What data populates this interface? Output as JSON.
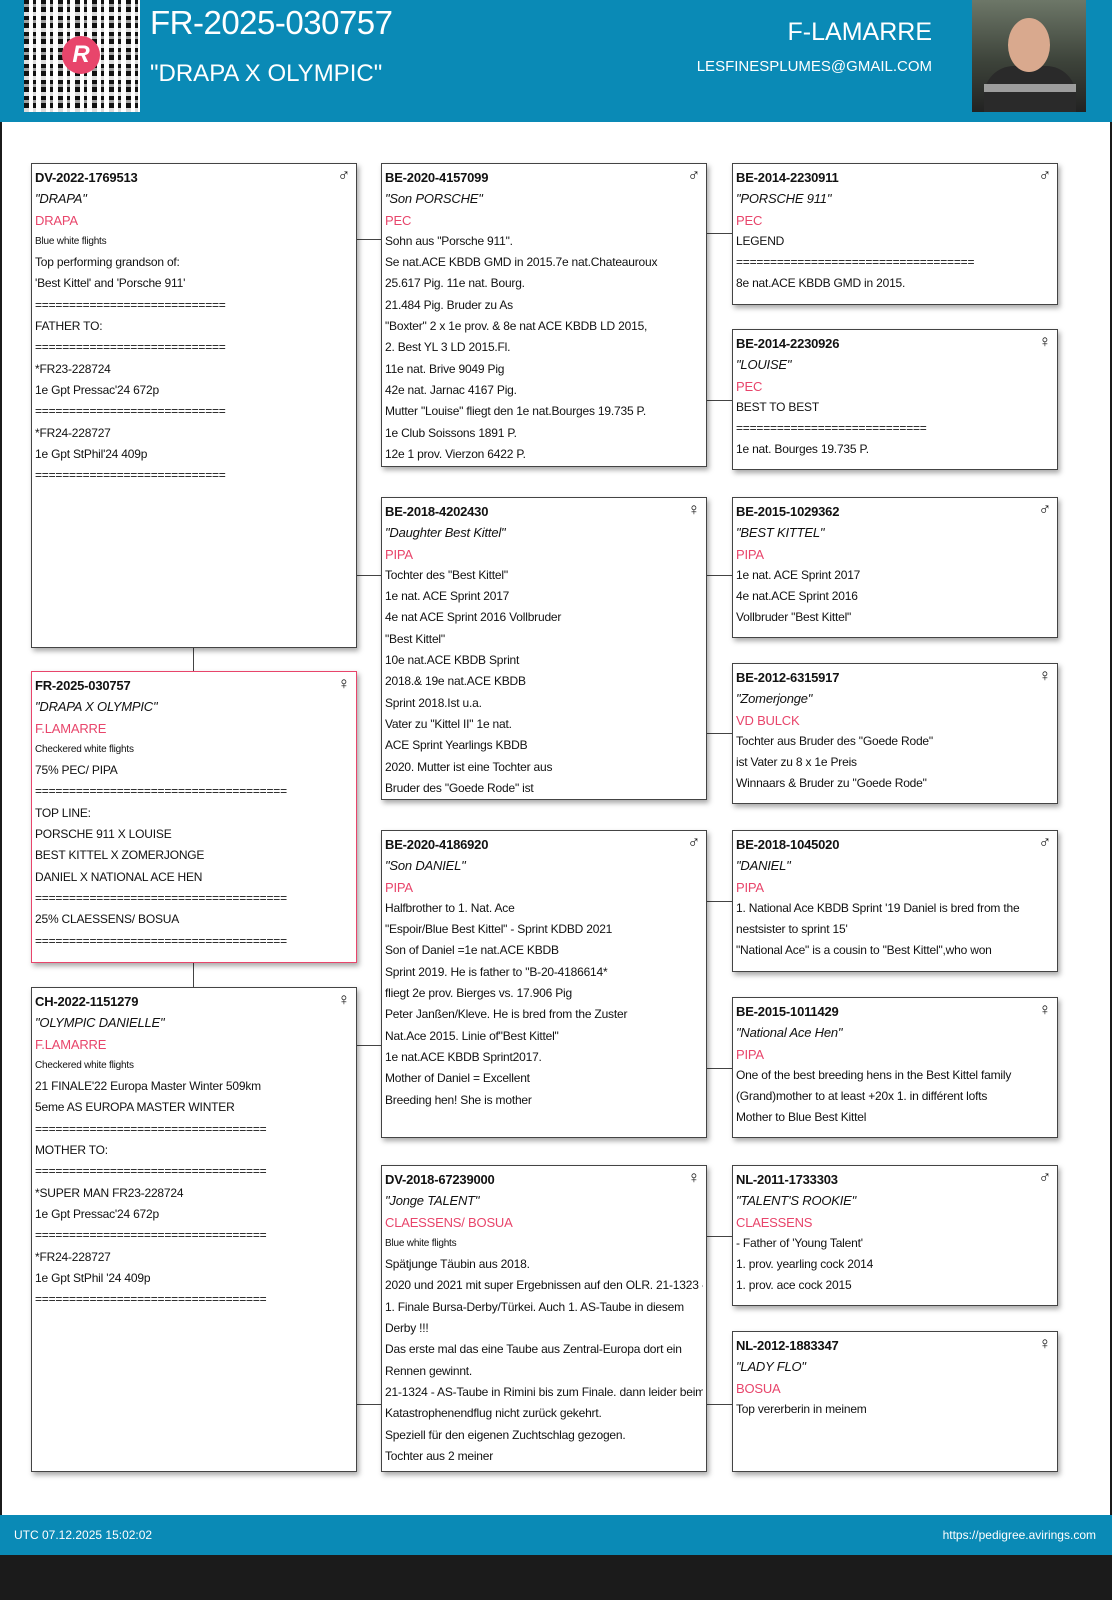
{
  "header": {
    "ring": "FR-2025-030757",
    "name": "\"DRAPA X OLYMPIC\"",
    "owner": "F-LAMARRE",
    "email": "LESFINESPLUMES@GMAIL.COM",
    "logo_letter": "R"
  },
  "footer": {
    "timestamp": "UTC 07.12.2025 15:02:02",
    "url": "https://pedigree.avirings.com"
  },
  "colors": {
    "brand": "#0a8ab6",
    "accent": "#e8456b"
  },
  "pigeons": [
    {
      "ring": "DV-2022-1769513",
      "sex": "male",
      "name": "\"DRAPA\"",
      "owner": "DRAPA",
      "color": "Blue white flights",
      "lines": [
        "Top performing grandson of:",
        "'Best Kittel' and 'Porsche 911'",
        "============================",
        "FATHER TO:",
        "============================",
        "*FR23-228724",
        "1e  Gpt Pressac'24 672p",
        "============================",
        "*FR24-228727",
        "1e  Gpt StPhil'24  409p",
        "============================"
      ]
    },
    {
      "ring": "FR-2025-030757",
      "sex": "female",
      "name": "\"DRAPA X OLYMPIC\"",
      "owner": "F.LAMARRE",
      "color": "Checkered white flights",
      "lines": [
        "75% PEC/ PIPA",
        "=====================================",
        "TOP LINE:",
        "PORSCHE 911 X LOUISE",
        "BEST KITTEL X ZOMERJONGE",
        "DANIEL X NATIONAL ACE HEN",
        "=====================================",
        "25% CLAESSENS/ BOSUA",
        "====================================="
      ]
    },
    {
      "ring": "CH-2022-1151279",
      "sex": "female",
      "name": "\"OLYMPIC DANIELLE\"",
      "owner": "F.LAMARRE",
      "color": "Checkered white flights",
      "lines": [
        "21 FINALE'22 Europa Master Winter 509km",
        "5eme AS EUROPA MASTER WINTER",
        "==================================",
        "MOTHER TO:",
        "==================================",
        "*SUPER MAN    FR23-228724",
        "1e  Gpt Pressac'24  672p",
        "==================================",
        "*FR24-228727",
        "1e  Gpt StPhil '24  409p",
        "=================================="
      ]
    },
    {
      "ring": "BE-2020-4157099",
      "sex": "male",
      "name": "\"Son PORSCHE\"",
      "owner": "PEC",
      "lines": [
        "Sohn aus \"Porsche 911\".",
        "Se nat.ACE KBDB GMD in 2015.7e nat.Chateauroux",
        "25.617 Pig. 11e nat. Bourg.",
        "21.484 Pig. Bruder zu As",
        "\"Boxter\" 2 x 1e prov. & 8e nat ACE KBDB LD 2015,",
        "2. Best YL 3 LD 2015.Fl.",
        "11e nat. Brive 9049 Pig",
        "42e nat. Jarnac 4167 Pig.",
        "Mutter \"Louise\" fliegt den 1e nat.Bourges 19.735 P.",
        "1e Club Soissons 1891 P.",
        "12e 1 prov. Vierzon 6422 P."
      ]
    },
    {
      "ring": "BE-2018-4202430",
      "sex": "female",
      "name": "\"Daughter Best Kittel\"",
      "owner": "PIPA",
      "lines": [
        "Tochter des \"Best Kittel\"",
        "1e nat. ACE Sprint 2017",
        "4e nat ACE Sprint 2016 Vollbruder",
        "\"Best Kittel\"",
        "10e nat.ACE KBDB Sprint",
        "2018.& 19e nat.ACE KBDB",
        "Sprint 2018.Ist u.a.",
        "Vater zu \"Kittel II\" 1e nat.",
        "ACE Sprint Yearlings KBDB",
        "2020. Mutter ist eine Tochter aus",
        "Bruder des \"Goede Rode\" ist"
      ]
    },
    {
      "ring": "BE-2020-4186920",
      "sex": "male",
      "name": "\"Son DANIEL\"",
      "owner": "PIPA",
      "lines": [
        "Halfbrother to 1. Nat. Ace",
        "\"Espoir/Blue Best Kittel\" - Sprint KDBD 2021",
        "Son of Daniel =1e nat.ACE KBDB",
        "Sprint 2019. He is father to \"B-20-4186614*",
        "fliegt 2e prov. Bierges vs. 17.906 Pig",
        "Peter Janßen/Kleve. He is bred from the Zuster",
        "Nat.Ace 2015. Linie of\"Best Kittel\"",
        "1e nat.ACE KBDB Sprint2017.",
        "Mother of Daniel = Excellent",
        "Breeding hen! She is mother"
      ]
    },
    {
      "ring": "DV-2018-67239000",
      "sex": "female",
      "name": "\"Jonge TALENT\"",
      "owner": "CLAESSENS/ BOSUA",
      "color": "Blue white flights",
      "lines": [
        "Spätjunge Täubin aus 2018.",
        "2020 und 2021 mit super Ergebnissen auf den OLR. 21-1323 -",
        "1. Finale Bursa-Derby/Türkei. Auch 1. AS-Taube in diesem",
        "Derby !!!",
        "Das erste mal das eine Taube aus Zentral-Europa dort ein",
        "Rennen gewinnt.",
        "21-1324 - AS-Taube in Rimini bis zum Finale. dann leider beim",
        "Katastrophenendflug nicht zurück gekehrt.",
        "Speziell für den eigenen Zuchtschlag gezogen.",
        "Tochter aus 2 meiner"
      ]
    },
    {
      "ring": "BE-2014-2230911",
      "sex": "male",
      "name": "\"PORSCHE 911\"",
      "owner": "PEC",
      "lines": [
        "LEGEND",
        "===================================",
        "8e nat.ACE KBDB GMD in 2015."
      ]
    },
    {
      "ring": "BE-2014-2230926",
      "sex": "female",
      "name": "\"LOUISE\"",
      "owner": "PEC",
      "lines": [
        "BEST TO BEST",
        "============================",
        "1e nat. Bourges 19.735 P."
      ]
    },
    {
      "ring": "BE-2015-1029362",
      "sex": "male",
      "name": "\"BEST KITTEL\"",
      "owner": "PIPA",
      "lines": [
        "1e nat. ACE Sprint 2017",
        "4e nat.ACE Sprint 2016",
        "Vollbruder \"Best Kittel\""
      ]
    },
    {
      "ring": "BE-2012-6315917",
      "sex": "female",
      "name": "\"Zomerjonge\"",
      "owner": "VD BULCK",
      "lines": [
        "Tochter aus Bruder des \"Goede Rode\"",
        "ist Vater zu 8 x 1e Preis",
        "Winnaars & Bruder zu \"Goede Rode\""
      ]
    },
    {
      "ring": "BE-2018-1045020",
      "sex": "male",
      "name": "\"DANIEL\"",
      "owner": "PIPA",
      "lines": [
        "1. National Ace KBDB Sprint '19 Daniel is bred from the",
        "nestsister to sprint 15'",
        "\"National Ace\" is a cousin to \"Best Kittel\",who won"
      ]
    },
    {
      "ring": "BE-2015-1011429",
      "sex": "female",
      "name": "\"National Ace Hen\"",
      "owner": "PIPA",
      "lines": [
        "One of the best breeding hens in the Best Kittel family",
        "(Grand)mother to at least +20x 1. in différent lofts",
        "Mother to Blue Best Kittel"
      ]
    },
    {
      "ring": "NL-2011-1733303",
      "sex": "male",
      "name": "\"TALENT'S ROOKIE\"",
      "owner": "CLAESSENS",
      "lines": [
        "- Father of 'Young Talent'",
        "1. prov. yearling cock 2014",
        "1. prov. ace cock 2015"
      ]
    },
    {
      "ring": "NL-2012-1883347",
      "sex": "female",
      "name": "\"LADY FLO\"",
      "owner": "BOSUA",
      "lines": [
        "Top vererberin in meinem"
      ]
    }
  ]
}
